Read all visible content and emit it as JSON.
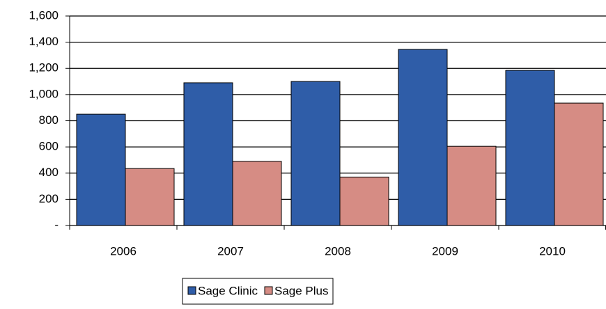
{
  "chart_data": {
    "type": "bar",
    "categories": [
      "2006",
      "2007",
      "2008",
      "2009",
      "2010"
    ],
    "series": [
      {
        "name": "Sage Clinic",
        "color": "#2f5da8",
        "values": [
          850,
          1090,
          1100,
          1345,
          1185
        ]
      },
      {
        "name": "Sage Plus",
        "color": "#d68c84",
        "values": [
          435,
          490,
          370,
          605,
          935
        ]
      }
    ],
    "ylim": [
      0,
      1600
    ],
    "yticks": [
      {
        "value": 0,
        "label": "-"
      },
      200,
      400,
      600,
      800,
      {
        "value": 1000,
        "label": "1,000"
      },
      {
        "value": 1200,
        "label": "1,200"
      },
      {
        "value": 1400,
        "label": "1,400"
      },
      {
        "value": 1600,
        "label": "1,600"
      }
    ],
    "grid": true,
    "legend": "bottom"
  }
}
